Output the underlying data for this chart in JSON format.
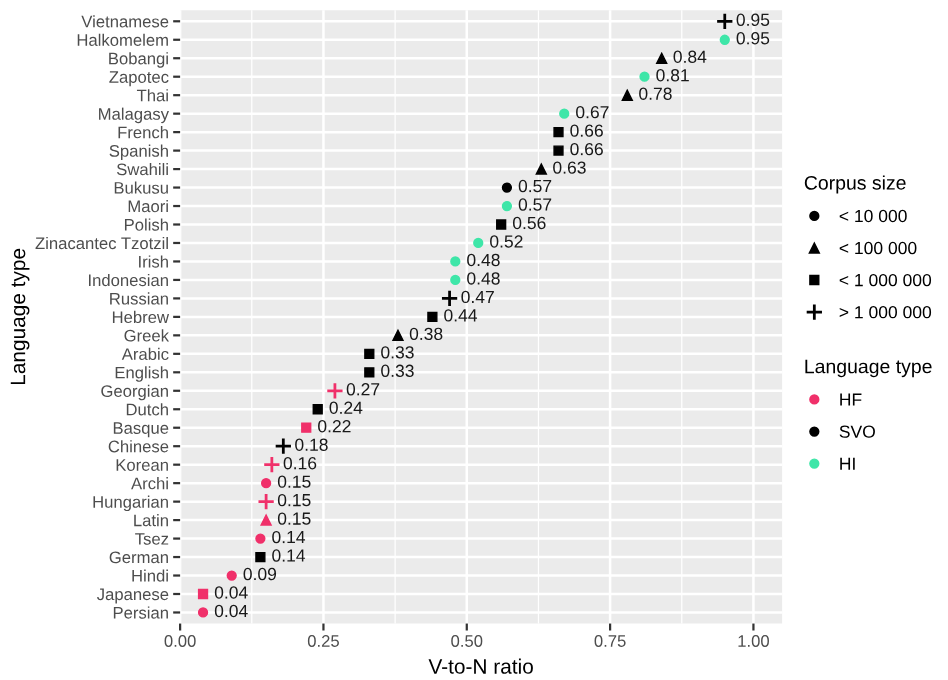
{
  "chart_data": {
    "type": "scatter",
    "orientation": "horizontal",
    "xlabel": "V-to-N ratio",
    "ylabel": "Language type",
    "categories": [
      "Vietnamese",
      "Halkomelem",
      "Bobangi",
      "Zapotec",
      "Thai",
      "Malagasy",
      "French",
      "Spanish",
      "Swahili",
      "Bukusu",
      "Maori",
      "Polish",
      "Zinacantec Tzotzil",
      "Irish",
      "Indonesian",
      "Russian",
      "Hebrew",
      "Greek",
      "Arabic",
      "English",
      "Georgian",
      "Dutch",
      "Basque",
      "Chinese",
      "Korean",
      "Archi",
      "Hungarian",
      "Latin",
      "Tsez",
      "German",
      "Hindi",
      "Japanese",
      "Persian"
    ],
    "series": [
      {
        "name": "< 10 000",
        "marker": "circle",
        "values": [
          null,
          0.95,
          null,
          0.81,
          null,
          0.67,
          null,
          null,
          null,
          0.57,
          0.57,
          null,
          0.52,
          0.48,
          0.48,
          null,
          null,
          null,
          null,
          null,
          null,
          null,
          null,
          null,
          null,
          0.15,
          null,
          null,
          0.14,
          null,
          0.09,
          null,
          0.04
        ],
        "colors": [
          null,
          "#3ee6a8",
          null,
          "#3ee6a8",
          null,
          "#3ee6a8",
          null,
          null,
          null,
          "#000000",
          "#3ee6a8",
          null,
          "#3ee6a8",
          "#3ee6a8",
          "#3ee6a8",
          null,
          null,
          null,
          null,
          null,
          null,
          null,
          null,
          null,
          null,
          "#f0306a",
          null,
          null,
          "#f0306a",
          null,
          "#f0306a",
          null,
          "#f0306a"
        ]
      },
      {
        "name": "< 100 000",
        "marker": "triangle",
        "values": [
          null,
          null,
          0.84,
          null,
          0.78,
          null,
          null,
          null,
          0.63,
          null,
          null,
          null,
          null,
          null,
          null,
          null,
          null,
          0.38,
          null,
          null,
          null,
          null,
          null,
          null,
          null,
          null,
          null,
          0.15,
          null,
          null,
          null,
          null,
          null
        ],
        "colors": [
          null,
          null,
          "#000000",
          null,
          "#000000",
          null,
          null,
          null,
          "#000000",
          null,
          null,
          null,
          null,
          null,
          null,
          null,
          null,
          "#000000",
          null,
          null,
          null,
          null,
          null,
          null,
          null,
          null,
          null,
          "#f0306a",
          null,
          null,
          null,
          null,
          null
        ]
      },
      {
        "name": "< 1 000 000",
        "marker": "square",
        "values": [
          null,
          null,
          null,
          null,
          null,
          null,
          0.66,
          0.66,
          null,
          null,
          null,
          0.56,
          null,
          null,
          null,
          null,
          0.44,
          null,
          0.33,
          0.33,
          null,
          0.24,
          0.22,
          null,
          null,
          null,
          null,
          null,
          null,
          0.14,
          null,
          0.04,
          null
        ],
        "colors": [
          null,
          null,
          null,
          null,
          null,
          null,
          "#000000",
          "#000000",
          null,
          null,
          null,
          "#000000",
          null,
          null,
          null,
          null,
          "#000000",
          null,
          "#000000",
          "#000000",
          null,
          "#000000",
          "#f0306a",
          null,
          null,
          null,
          null,
          null,
          null,
          "#000000",
          null,
          "#f0306a",
          null
        ]
      },
      {
        "name": "> 1 000 000",
        "marker": "cross",
        "values": [
          0.95,
          null,
          null,
          null,
          null,
          null,
          null,
          null,
          null,
          null,
          null,
          null,
          null,
          null,
          null,
          0.47,
          null,
          null,
          null,
          null,
          0.27,
          null,
          null,
          0.18,
          0.16,
          null,
          0.15,
          null,
          null,
          null,
          null,
          null,
          null
        ],
        "colors": [
          "#000000",
          null,
          null,
          null,
          null,
          null,
          null,
          null,
          null,
          null,
          null,
          null,
          null,
          null,
          null,
          "#000000",
          null,
          null,
          null,
          null,
          "#f0306a",
          null,
          null,
          "#000000",
          "#f0306a",
          null,
          "#f0306a",
          null,
          null,
          null,
          null,
          null,
          null
        ]
      },
      {
        "name": "HF",
        "color": "#f0306a",
        "values": [
          null,
          null,
          null,
          null,
          null,
          null,
          null,
          null,
          null,
          null,
          null,
          null,
          null,
          null,
          null,
          null,
          null,
          null,
          null,
          null,
          null,
          null,
          null,
          null,
          null,
          null,
          null,
          null,
          null,
          null,
          null,
          null,
          null
        ]
      },
      {
        "name": "SVO",
        "color": "#000000",
        "values": [
          null,
          null,
          null,
          null,
          null,
          null,
          null,
          null,
          null,
          null,
          null,
          null,
          null,
          null,
          null,
          null,
          null,
          null,
          null,
          null,
          null,
          null,
          null,
          null,
          null,
          null,
          null,
          null,
          null,
          null,
          null,
          null,
          null
        ]
      },
      {
        "name": "HI",
        "color": "#3ee6a8",
        "values": [
          null,
          null,
          null,
          null,
          null,
          null,
          null,
          null,
          null,
          null,
          null,
          null,
          null,
          null,
          null,
          null,
          null,
          null,
          null,
          null,
          null,
          null,
          null,
          null,
          null,
          null,
          null,
          null,
          null,
          null,
          null,
          null,
          null
        ]
      }
    ],
    "data_labels": true,
    "xlim": [
      0,
      1.05
    ],
    "xticks": [
      {
        "value": 0,
        "label": "0.00"
      },
      {
        "value": 0.25,
        "label": "0.25"
      },
      {
        "value": 0.5,
        "label": "0.50"
      },
      {
        "value": 0.75,
        "label": "0.75"
      },
      {
        "value": 1,
        "label": "1.00"
      }
    ],
    "grid": true,
    "legend": "right",
    "legend_title": [
      "Corpus size",
      "Language type"
    ]
  }
}
